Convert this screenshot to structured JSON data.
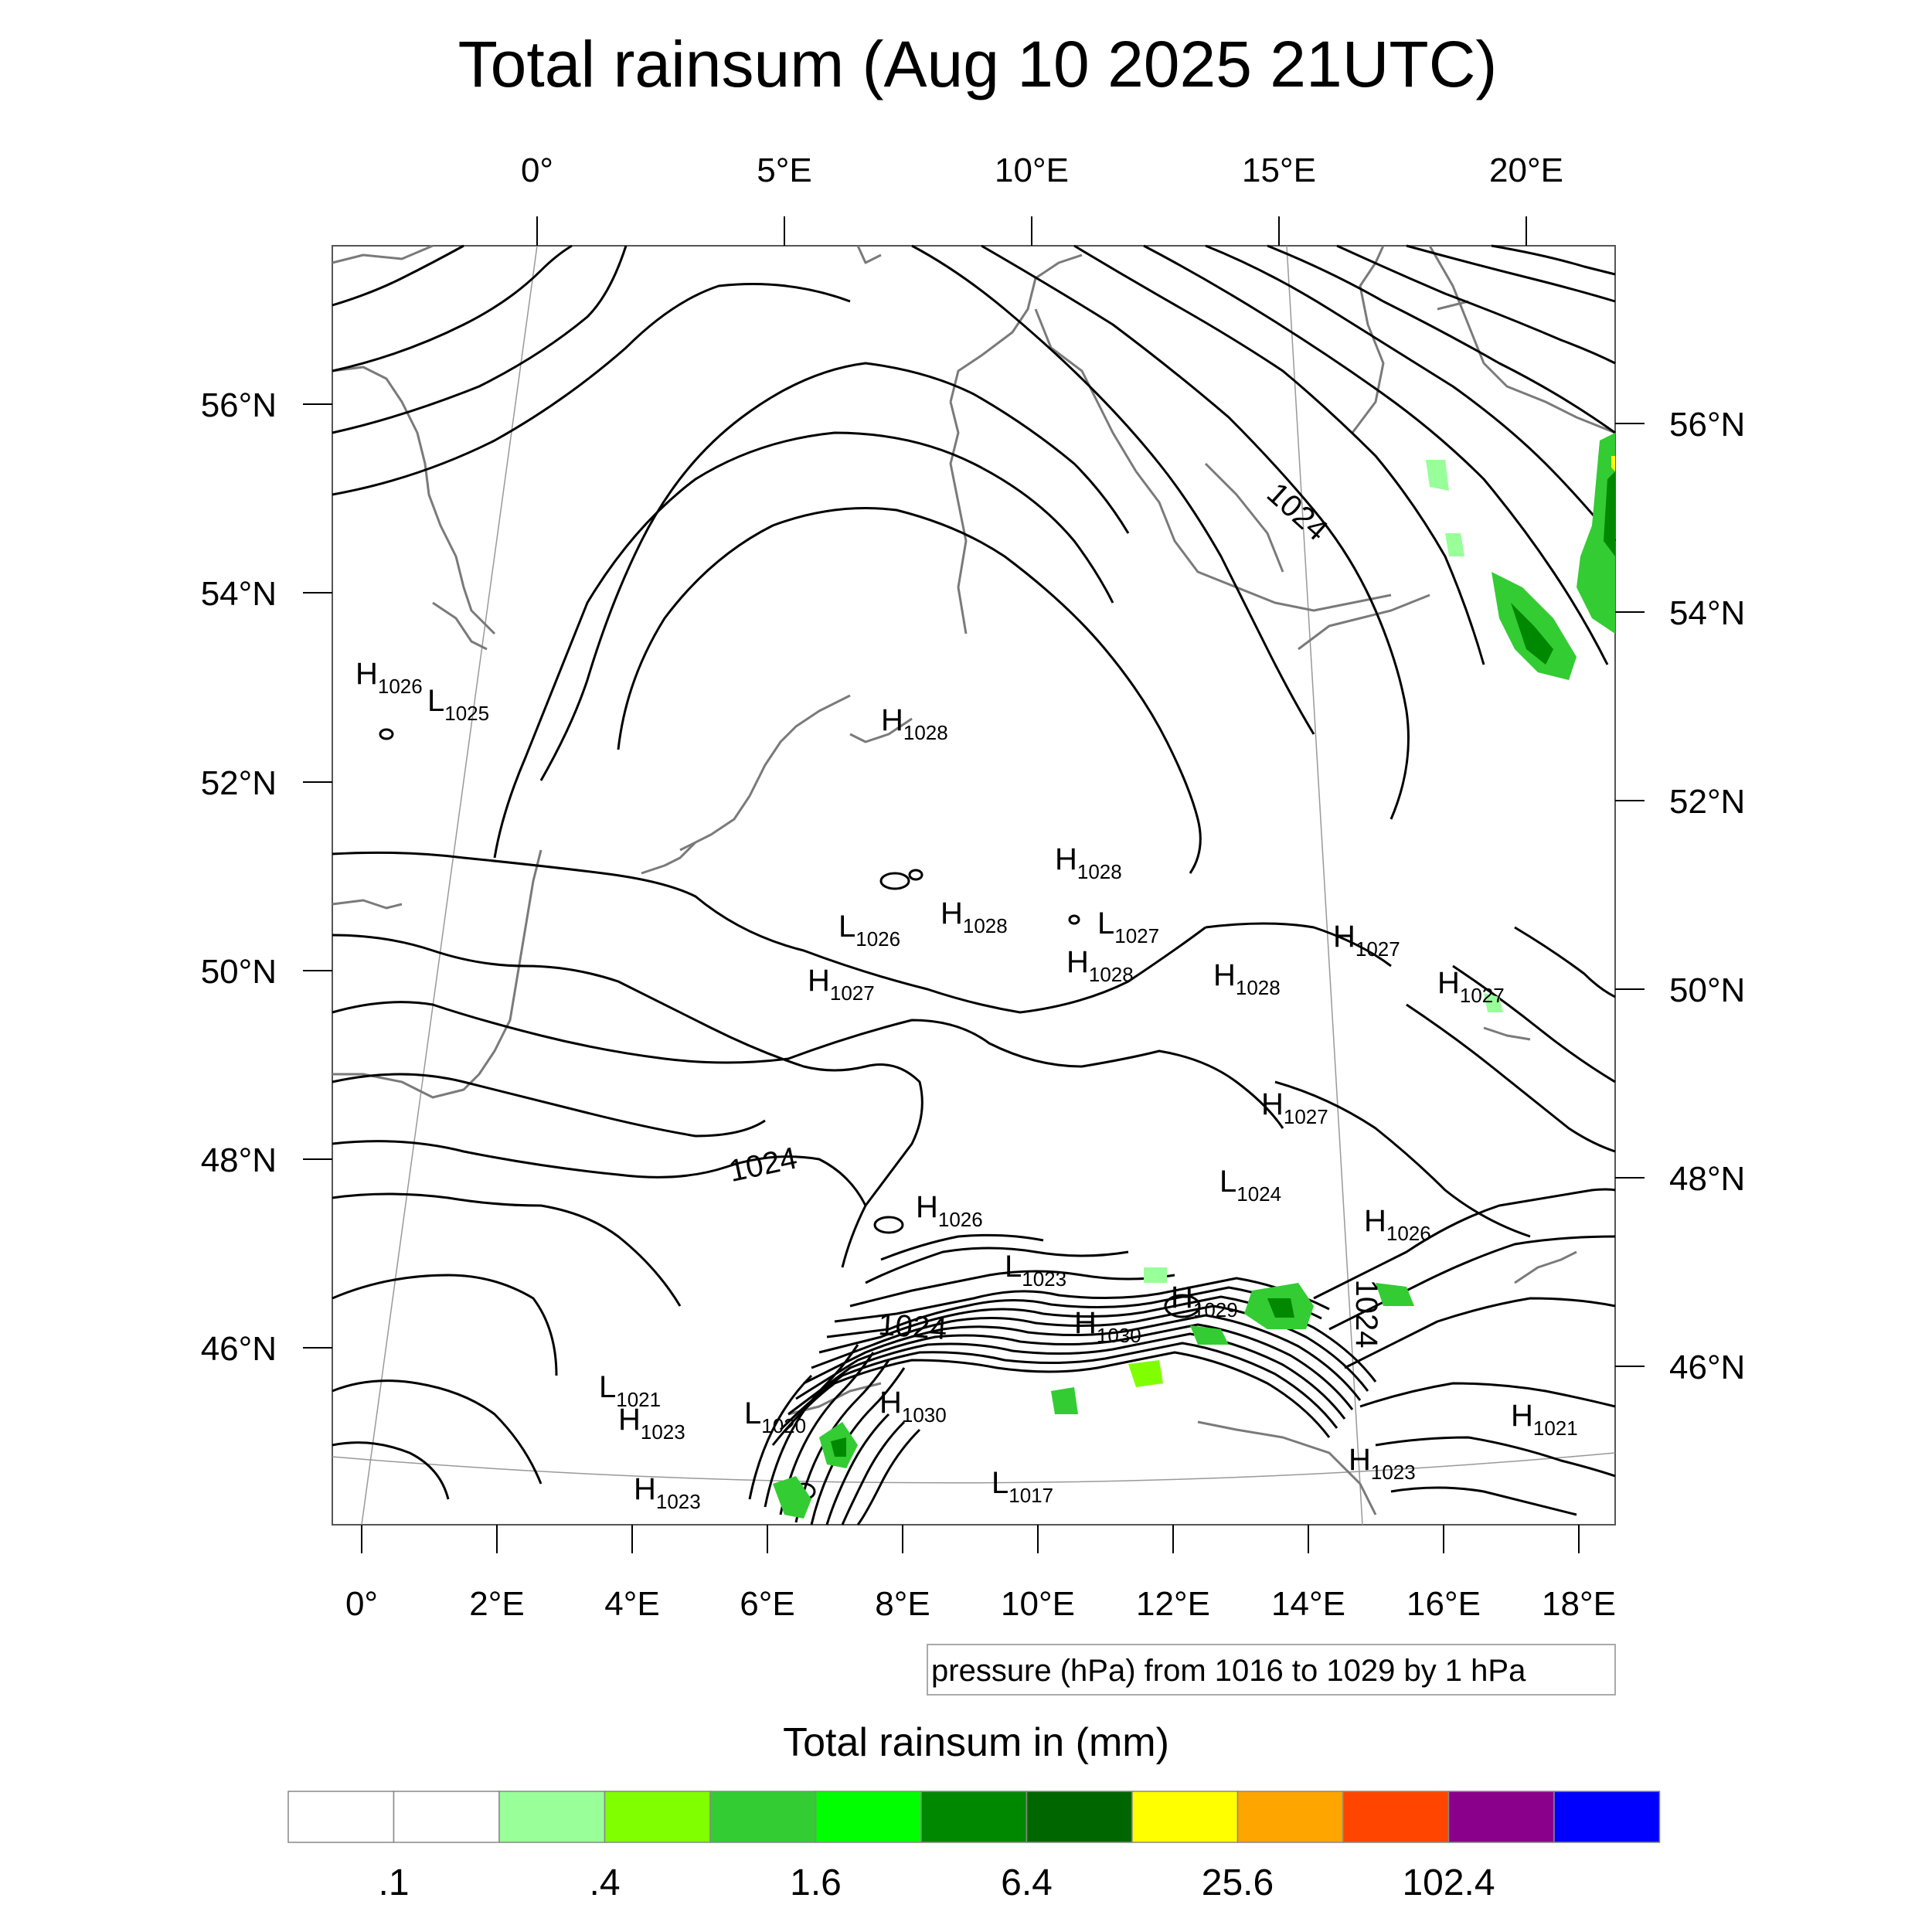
{
  "title": "Total rainsum (Aug 10 2025 21UTC)",
  "top_lon_labels": [
    "0°",
    "5°E",
    "10°E",
    "15°E",
    "20°E"
  ],
  "bottom_lon_labels": [
    "0°",
    "2°E",
    "4°E",
    "6°E",
    "8°E",
    "10°E",
    "12°E",
    "14°E",
    "16°E",
    "18°E"
  ],
  "left_lat_labels": [
    "56°N",
    "54°N",
    "52°N",
    "50°N",
    "48°N",
    "46°N"
  ],
  "right_lat_labels": [
    "56°N",
    "54°N",
    "52°N",
    "50°N",
    "48°N",
    "46°N"
  ],
  "pressure_centers": [
    {
      "t": "H",
      "v": "1026"
    },
    {
      "t": "L",
      "v": "1025"
    },
    {
      "t": "H",
      "v": "1028"
    },
    {
      "t": "H",
      "v": "1028"
    },
    {
      "t": "H",
      "v": "1028"
    },
    {
      "t": "L",
      "v": "1026"
    },
    {
      "t": "L",
      "v": "1027"
    },
    {
      "t": "H",
      "v": "1027"
    },
    {
      "t": "H",
      "v": "1028"
    },
    {
      "t": "H",
      "v": "1028"
    },
    {
      "t": "H",
      "v": "1027"
    },
    {
      "t": "H",
      "v": "1027"
    },
    {
      "t": "H",
      "v": "1027"
    },
    {
      "t": "L",
      "v": "1024"
    },
    {
      "t": "H",
      "v": "1026"
    },
    {
      "t": "H",
      "v": "1026"
    },
    {
      "t": "L",
      "v": "1023"
    },
    {
      "t": "H",
      "v": "1029"
    },
    {
      "t": "H",
      "v": "1030"
    },
    {
      "t": "L",
      "v": "1021"
    },
    {
      "t": "H",
      "v": "1023"
    },
    {
      "t": "L",
      "v": "1020"
    },
    {
      "t": "H",
      "v": "1030"
    },
    {
      "t": "H",
      "v": "1023"
    },
    {
      "t": "L",
      "v": "1017"
    },
    {
      "t": "H",
      "v": "1021"
    },
    {
      "t": "H",
      "v": "1023"
    }
  ],
  "isobar_labels": [
    "1024",
    "1024",
    "1024",
    "1024"
  ],
  "contour_info": "pressure (hPa) from 1016 to 1029 by 1 hPa",
  "colorbar": {
    "title": "Total rainsum in (mm)",
    "colors": [
      "#ffffff",
      "#ffffff",
      "#99ff99",
      "#80ff00",
      "#33cc33",
      "#00ff00",
      "#008800",
      "#006600",
      "#ffff00",
      "#ffa500",
      "#ff4500",
      "#8b008b",
      "#0000ff"
    ],
    "labels": [
      ".1",
      ".4",
      "1.6",
      "6.4",
      "25.6",
      "102.4"
    ]
  }
}
